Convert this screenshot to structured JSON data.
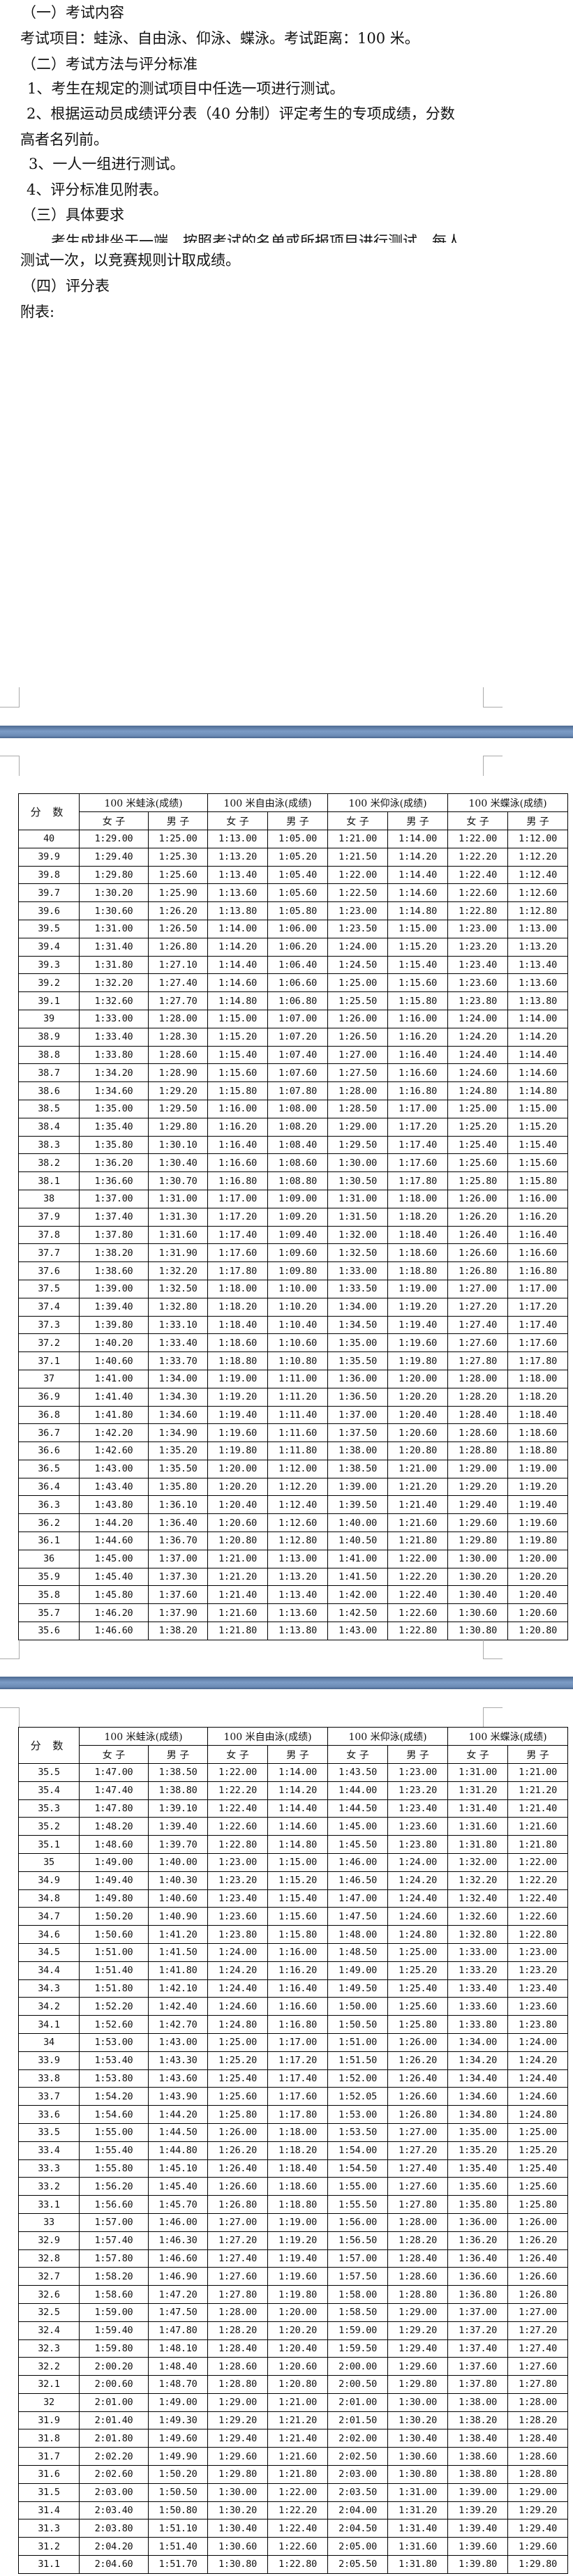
{
  "document": {
    "lines": [
      "（一）考试内容",
      "考试项目：蛙泳、自由泳、仰泳、蝶泳。考试距离：100 米。",
      "（二）考试方法与评分标准",
      "1、考生在规定的测试项目中任选一项进行测试。",
      "2、根据运动员成绩评分表（40 分制）评定考生的专项成绩，分数",
      "高者名列前。",
      "3、一人一组进行测试。",
      "4、评分标准见附表。",
      "（三）具体要求",
      "考生成排坐于一端，按照考试的名单或所报项目进行测试，每人",
      "测试一次，以竞赛规则计取成绩。",
      "（四）评分表",
      "附表:"
    ]
  },
  "colors": {
    "page_separator": "#6c8cb6",
    "grid": "#000000",
    "text": "#111111"
  },
  "table_header": {
    "score": "分 数",
    "events": [
      "100 米蛙泳(成绩)",
      "100 米自由泳(成绩)",
      "100 米仰泳(成绩)",
      "100 米蝶泳(成绩)"
    ],
    "female": "女 子",
    "male": "男 子"
  },
  "tables": [
    {
      "rows": [
        [
          "40",
          "1:29.00",
          "1:25.00",
          "1:13.00",
          "1:05.00",
          "1:21.00",
          "1:14.00",
          "1:22.00",
          "1:12.00"
        ],
        [
          "39.9",
          "1:29.40",
          "1:25.30",
          "1:13.20",
          "1:05.20",
          "1:21.50",
          "1:14.20",
          "1:22.20",
          "1:12.20"
        ],
        [
          "39.8",
          "1:29.80",
          "1:25.60",
          "1:13.40",
          "1:05.40",
          "1:22.00",
          "1:14.40",
          "1:22.40",
          "1:12.40"
        ],
        [
          "39.7",
          "1:30.20",
          "1:25.90",
          "1:13.60",
          "1:05.60",
          "1:22.50",
          "1:14.60",
          "1:22.60",
          "1:12.60"
        ],
        [
          "39.6",
          "1:30.60",
          "1:26.20",
          "1:13.80",
          "1:05.80",
          "1:23.00",
          "1:14.80",
          "1:22.80",
          "1:12.80"
        ],
        [
          "39.5",
          "1:31.00",
          "1:26.50",
          "1:14.00",
          "1:06.00",
          "1:23.50",
          "1:15.00",
          "1:23.00",
          "1:13.00"
        ],
        [
          "39.4",
          "1:31.40",
          "1:26.80",
          "1:14.20",
          "1:06.20",
          "1:24.00",
          "1:15.20",
          "1:23.20",
          "1:13.20"
        ],
        [
          "39.3",
          "1:31.80",
          "1:27.10",
          "1:14.40",
          "1:06.40",
          "1:24.50",
          "1:15.40",
          "1:23.40",
          "1:13.40"
        ],
        [
          "39.2",
          "1:32.20",
          "1:27.40",
          "1:14.60",
          "1:06.60",
          "1:25.00",
          "1:15.60",
          "1:23.60",
          "1:13.60"
        ],
        [
          "39.1",
          "1:32.60",
          "1:27.70",
          "1:14.80",
          "1:06.80",
          "1:25.50",
          "1:15.80",
          "1:23.80",
          "1:13.80"
        ],
        [
          "39",
          "1:33.00",
          "1:28.00",
          "1:15.00",
          "1:07.00",
          "1:26.00",
          "1:16.00",
          "1:24.00",
          "1:14.00"
        ],
        [
          "38.9",
          "1:33.40",
          "1:28.30",
          "1:15.20",
          "1:07.20",
          "1:26.50",
          "1:16.20",
          "1:24.20",
          "1:14.20"
        ],
        [
          "38.8",
          "1:33.80",
          "1:28.60",
          "1:15.40",
          "1:07.40",
          "1:27.00",
          "1:16.40",
          "1:24.40",
          "1:14.40"
        ],
        [
          "38.7",
          "1:34.20",
          "1:28.90",
          "1:15.60",
          "1:07.60",
          "1:27.50",
          "1:16.60",
          "1:24.60",
          "1:14.60"
        ],
        [
          "38.6",
          "1:34.60",
          "1:29.20",
          "1:15.80",
          "1:07.80",
          "1:28.00",
          "1:16.80",
          "1:24.80",
          "1:14.80"
        ],
        [
          "38.5",
          "1:35.00",
          "1:29.50",
          "1:16.00",
          "1:08.00",
          "1:28.50",
          "1:17.00",
          "1:25.00",
          "1:15.00"
        ],
        [
          "38.4",
          "1:35.40",
          "1:29.80",
          "1:16.20",
          "1:08.20",
          "1:29.00",
          "1:17.20",
          "1:25.20",
          "1:15.20"
        ],
        [
          "38.3",
          "1:35.80",
          "1:30.10",
          "1:16.40",
          "1:08.40",
          "1:29.50",
          "1:17.40",
          "1:25.40",
          "1:15.40"
        ],
        [
          "38.2",
          "1:36.20",
          "1:30.40",
          "1:16.60",
          "1:08.60",
          "1:30.00",
          "1:17.60",
          "1:25.60",
          "1:15.60"
        ],
        [
          "38.1",
          "1:36.60",
          "1:30.70",
          "1:16.80",
          "1:08.80",
          "1:30.50",
          "1:17.80",
          "1:25.80",
          "1:15.80"
        ],
        [
          "38",
          "1:37.00",
          "1:31.00",
          "1:17.00",
          "1:09.00",
          "1:31.00",
          "1:18.00",
          "1:26.00",
          "1:16.00"
        ],
        [
          "37.9",
          "1:37.40",
          "1:31.30",
          "1:17.20",
          "1:09.20",
          "1:31.50",
          "1:18.20",
          "1:26.20",
          "1:16.20"
        ],
        [
          "37.8",
          "1:37.80",
          "1:31.60",
          "1:17.40",
          "1:09.40",
          "1:32.00",
          "1:18.40",
          "1:26.40",
          "1:16.40"
        ],
        [
          "37.7",
          "1:38.20",
          "1:31.90",
          "1:17.60",
          "1:09.60",
          "1:32.50",
          "1:18.60",
          "1:26.60",
          "1:16.60"
        ],
        [
          "37.6",
          "1:38.60",
          "1:32.20",
          "1:17.80",
          "1:09.80",
          "1:33.00",
          "1:18.80",
          "1:26.80",
          "1:16.80"
        ],
        [
          "37.5",
          "1:39.00",
          "1:32.50",
          "1:18.00",
          "1:10.00",
          "1:33.50",
          "1:19.00",
          "1:27.00",
          "1:17.00"
        ],
        [
          "37.4",
          "1:39.40",
          "1:32.80",
          "1:18.20",
          "1:10.20",
          "1:34.00",
          "1:19.20",
          "1:27.20",
          "1:17.20"
        ],
        [
          "37.3",
          "1:39.80",
          "1:33.10",
          "1:18.40",
          "1:10.40",
          "1:34.50",
          "1:19.40",
          "1:27.40",
          "1:17.40"
        ],
        [
          "37.2",
          "1:40.20",
          "1:33.40",
          "1:18.60",
          "1:10.60",
          "1:35.00",
          "1:19.60",
          "1:27.60",
          "1:17.60"
        ],
        [
          "37.1",
          "1:40.60",
          "1:33.70",
          "1:18.80",
          "1:10.80",
          "1:35.50",
          "1:19.80",
          "1:27.80",
          "1:17.80"
        ],
        [
          "37",
          "1:41.00",
          "1:34.00",
          "1:19.00",
          "1:11.00",
          "1:36.00",
          "1:20.00",
          "1:28.00",
          "1:18.00"
        ],
        [
          "36.9",
          "1:41.40",
          "1:34.30",
          "1:19.20",
          "1:11.20",
          "1:36.50",
          "1:20.20",
          "1:28.20",
          "1:18.20"
        ],
        [
          "36.8",
          "1:41.80",
          "1:34.60",
          "1:19.40",
          "1:11.40",
          "1:37.00",
          "1:20.40",
          "1:28.40",
          "1:18.40"
        ],
        [
          "36.7",
          "1:42.20",
          "1:34.90",
          "1:19.60",
          "1:11.60",
          "1:37.50",
          "1:20.60",
          "1:28.60",
          "1:18.60"
        ],
        [
          "36.6",
          "1:42.60",
          "1:35.20",
          "1:19.80",
          "1:11.80",
          "1:38.00",
          "1:20.80",
          "1:28.80",
          "1:18.80"
        ],
        [
          "36.5",
          "1:43.00",
          "1:35.50",
          "1:20.00",
          "1:12.00",
          "1:38.50",
          "1:21.00",
          "1:29.00",
          "1:19.00"
        ],
        [
          "36.4",
          "1:43.40",
          "1:35.80",
          "1:20.20",
          "1:12.20",
          "1:39.00",
          "1:21.20",
          "1:29.20",
          "1:19.20"
        ],
        [
          "36.3",
          "1:43.80",
          "1:36.10",
          "1:20.40",
          "1:12.40",
          "1:39.50",
          "1:21.40",
          "1:29.40",
          "1:19.40"
        ],
        [
          "36.2",
          "1:44.20",
          "1:36.40",
          "1:20.60",
          "1:12.60",
          "1:40.00",
          "1:21.60",
          "1:29.60",
          "1:19.60"
        ],
        [
          "36.1",
          "1:44.60",
          "1:36.70",
          "1:20.80",
          "1:12.80",
          "1:40.50",
          "1:21.80",
          "1:29.80",
          "1:19.80"
        ],
        [
          "36",
          "1:45.00",
          "1:37.00",
          "1:21.00",
          "1:13.00",
          "1:41.00",
          "1:22.00",
          "1:30.00",
          "1:20.00"
        ],
        [
          "35.9",
          "1:45.40",
          "1:37.30",
          "1:21.20",
          "1:13.20",
          "1:41.50",
          "1:22.20",
          "1:30.20",
          "1:20.20"
        ],
        [
          "35.8",
          "1:45.80",
          "1:37.60",
          "1:21.40",
          "1:13.40",
          "1:42.00",
          "1:22.40",
          "1:30.40",
          "1:20.40"
        ],
        [
          "35.7",
          "1:46.20",
          "1:37.90",
          "1:21.60",
          "1:13.60",
          "1:42.50",
          "1:22.60",
          "1:30.60",
          "1:20.60"
        ],
        [
          "35.6",
          "1:46.60",
          "1:38.20",
          "1:21.80",
          "1:13.80",
          "1:43.00",
          "1:22.80",
          "1:30.80",
          "1:20.80"
        ]
      ]
    },
    {
      "rows": [
        [
          "35.5",
          "1:47.00",
          "1:38.50",
          "1:22.00",
          "1:14.00",
          "1:43.50",
          "1:23.00",
          "1:31.00",
          "1:21.00"
        ],
        [
          "35.4",
          "1:47.40",
          "1:38.80",
          "1:22.20",
          "1:14.20",
          "1:44.00",
          "1:23.20",
          "1:31.20",
          "1:21.20"
        ],
        [
          "35.3",
          "1:47.80",
          "1:39.10",
          "1:22.40",
          "1:14.40",
          "1:44.50",
          "1:23.40",
          "1:31.40",
          "1:21.40"
        ],
        [
          "35.2",
          "1:48.20",
          "1:39.40",
          "1:22.60",
          "1:14.60",
          "1:45.00",
          "1:23.60",
          "1:31.60",
          "1:21.60"
        ],
        [
          "35.1",
          "1:48.60",
          "1:39.70",
          "1:22.80",
          "1:14.80",
          "1:45.50",
          "1:23.80",
          "1:31.80",
          "1:21.80"
        ],
        [
          "35",
          "1:49.00",
          "1:40.00",
          "1:23.00",
          "1:15.00",
          "1:46.00",
          "1:24.00",
          "1:32.00",
          "1:22.00"
        ],
        [
          "34.9",
          "1:49.40",
          "1:40.30",
          "1:23.20",
          "1:15.20",
          "1:46.50",
          "1:24.20",
          "1:32.20",
          "1:22.20"
        ],
        [
          "34.8",
          "1:49.80",
          "1:40.60",
          "1:23.40",
          "1:15.40",
          "1:47.00",
          "1:24.40",
          "1:32.40",
          "1:22.40"
        ],
        [
          "34.7",
          "1:50.20",
          "1:40.90",
          "1:23.60",
          "1:15.60",
          "1:47.50",
          "1:24.60",
          "1:32.60",
          "1:22.60"
        ],
        [
          "34.6",
          "1:50.60",
          "1:41.20",
          "1:23.80",
          "1:15.80",
          "1:48.00",
          "1:24.80",
          "1:32.80",
          "1:22.80"
        ],
        [
          "34.5",
          "1:51.00",
          "1:41.50",
          "1:24.00",
          "1:16.00",
          "1:48.50",
          "1:25.00",
          "1:33.00",
          "1:23.00"
        ],
        [
          "34.4",
          "1:51.40",
          "1:41.80",
          "1:24.20",
          "1:16.20",
          "1:49.00",
          "1:25.20",
          "1:33.20",
          "1:23.20"
        ],
        [
          "34.3",
          "1:51.80",
          "1:42.10",
          "1:24.40",
          "1:16.40",
          "1:49.50",
          "1:25.40",
          "1:33.40",
          "1:23.40"
        ],
        [
          "34.2",
          "1:52.20",
          "1:42.40",
          "1:24.60",
          "1:16.60",
          "1:50.00",
          "1:25.60",
          "1:33.60",
          "1:23.60"
        ],
        [
          "34.1",
          "1:52.60",
          "1:42.70",
          "1:24.80",
          "1:16.80",
          "1:50.50",
          "1:25.80",
          "1:33.80",
          "1:23.80"
        ],
        [
          "34",
          "1:53.00",
          "1:43.00",
          "1:25.00",
          "1:17.00",
          "1:51.00",
          "1:26.00",
          "1:34.00",
          "1:24.00"
        ],
        [
          "33.9",
          "1:53.40",
          "1:43.30",
          "1:25.20",
          "1:17.20",
          "1:51.50",
          "1:26.20",
          "1:34.20",
          "1:24.20"
        ],
        [
          "33.8",
          "1:53.80",
          "1:43.60",
          "1:25.40",
          "1:17.40",
          "1:52.00",
          "1:26.40",
          "1:34.40",
          "1:24.40"
        ],
        [
          "33.7",
          "1:54.20",
          "1:43.90",
          "1:25.60",
          "1:17.60",
          "1:52.05",
          "1:26.60",
          "1:34.60",
          "1:24.60"
        ],
        [
          "33.6",
          "1:54.60",
          "1:44.20",
          "1:25.80",
          "1:17.80",
          "1:53.00",
          "1:26.80",
          "1:34.80",
          "1:24.80"
        ],
        [
          "33.5",
          "1:55.00",
          "1:44.50",
          "1:26.00",
          "1:18.00",
          "1:53.50",
          "1:27.00",
          "1:35.00",
          "1:25.00"
        ],
        [
          "33.4",
          "1:55.40",
          "1:44.80",
          "1:26.20",
          "1:18.20",
          "1:54.00",
          "1:27.20",
          "1:35.20",
          "1:25.20"
        ],
        [
          "33.3",
          "1:55.80",
          "1:45.10",
          "1:26.40",
          "1:18.40",
          "1:54.50",
          "1:27.40",
          "1:35.40",
          "1:25.40"
        ],
        [
          "33.2",
          "1:56.20",
          "1:45.40",
          "1:26.60",
          "1:18.60",
          "1:55.00",
          "1:27.60",
          "1:35.60",
          "1:25.60"
        ],
        [
          "33.1",
          "1:56.60",
          "1:45.70",
          "1:26.80",
          "1:18.80",
          "1:55.50",
          "1:27.80",
          "1:35.80",
          "1:25.80"
        ],
        [
          "33",
          "1:57.00",
          "1:46.00",
          "1:27.00",
          "1:19.00",
          "1:56.00",
          "1:28.00",
          "1:36.00",
          "1:26.00"
        ],
        [
          "32.9",
          "1:57.40",
          "1:46.30",
          "1:27.20",
          "1:19.20",
          "1:56.50",
          "1:28.20",
          "1:36.20",
          "1:26.20"
        ],
        [
          "32.8",
          "1:57.80",
          "1:46.60",
          "1:27.40",
          "1:19.40",
          "1:57.00",
          "1:28.40",
          "1:36.40",
          "1:26.40"
        ],
        [
          "32.7",
          "1:58.20",
          "1:46.90",
          "1:27.60",
          "1:19.60",
          "1:57.50",
          "1:28.60",
          "1:36.60",
          "1:26.60"
        ],
        [
          "32.6",
          "1:58.60",
          "1:47.20",
          "1:27.80",
          "1:19.80",
          "1:58.00",
          "1:28.80",
          "1:36.80",
          "1:26.80"
        ],
        [
          "32.5",
          "1:59.00",
          "1:47.50",
          "1:28.00",
          "1:20.00",
          "1:58.50",
          "1:29.00",
          "1:37.00",
          "1:27.00"
        ],
        [
          "32.4",
          "1:59.40",
          "1:47.80",
          "1:28.20",
          "1:20.20",
          "1:59.00",
          "1:29.20",
          "1:37.20",
          "1:27.20"
        ],
        [
          "32.3",
          "1:59.80",
          "1:48.10",
          "1:28.40",
          "1:20.40",
          "1:59.50",
          "1:29.40",
          "1:37.40",
          "1:27.40"
        ],
        [
          "32.2",
          "2:00.20",
          "1:48.40",
          "1:28.60",
          "1:20.60",
          "2:00.00",
          "1:29.60",
          "1:37.60",
          "1:27.60"
        ],
        [
          "32.1",
          "2:00.60",
          "1:48.70",
          "1:28.80",
          "1:20.80",
          "2:00.50",
          "1:29.80",
          "1:37.80",
          "1:27.80"
        ],
        [
          "32",
          "2:01.00",
          "1:49.00",
          "1:29.00",
          "1:21.00",
          "2:01.00",
          "1:30.00",
          "1:38.00",
          "1:28.00"
        ],
        [
          "31.9",
          "2:01.40",
          "1:49.30",
          "1:29.20",
          "1:21.20",
          "2:01.50",
          "1:30.20",
          "1:38.20",
          "1:28.20"
        ],
        [
          "31.8",
          "2:01.80",
          "1:49.60",
          "1:29.40",
          "1:21.40",
          "2:02.00",
          "1:30.40",
          "1:38.40",
          "1:28.40"
        ],
        [
          "31.7",
          "2:02.20",
          "1:49.90",
          "1:29.60",
          "1:21.60",
          "2:02.50",
          "1:30.60",
          "1:38.60",
          "1:28.60"
        ],
        [
          "31.6",
          "2:02.60",
          "1:50.20",
          "1:29.80",
          "1:21.80",
          "2:03.00",
          "1:30.80",
          "1:38.80",
          "1:28.80"
        ],
        [
          "31.5",
          "2:03.00",
          "1:50.50",
          "1:30.00",
          "1:22.00",
          "2:03.50",
          "1:31.00",
          "1:39.00",
          "1:29.00"
        ],
        [
          "31.4",
          "2:03.40",
          "1:50.80",
          "1:30.20",
          "1:22.20",
          "2:04.00",
          "1:31.20",
          "1:39.20",
          "1:29.20"
        ],
        [
          "31.3",
          "2:03.80",
          "1:51.10",
          "1:30.40",
          "1:22.40",
          "2:04.50",
          "1:31.40",
          "1:39.40",
          "1:29.40"
        ],
        [
          "31.2",
          "2:04.20",
          "1:51.40",
          "1:30.60",
          "1:22.60",
          "2:05.00",
          "1:31.60",
          "1:39.60",
          "1:29.60"
        ],
        [
          "31.1",
          "2:04.60",
          "1:51.70",
          "1:30.80",
          "1:22.80",
          "2:05.50",
          "1:31.80",
          "1:39.80",
          "1:29.80"
        ]
      ]
    }
  ]
}
